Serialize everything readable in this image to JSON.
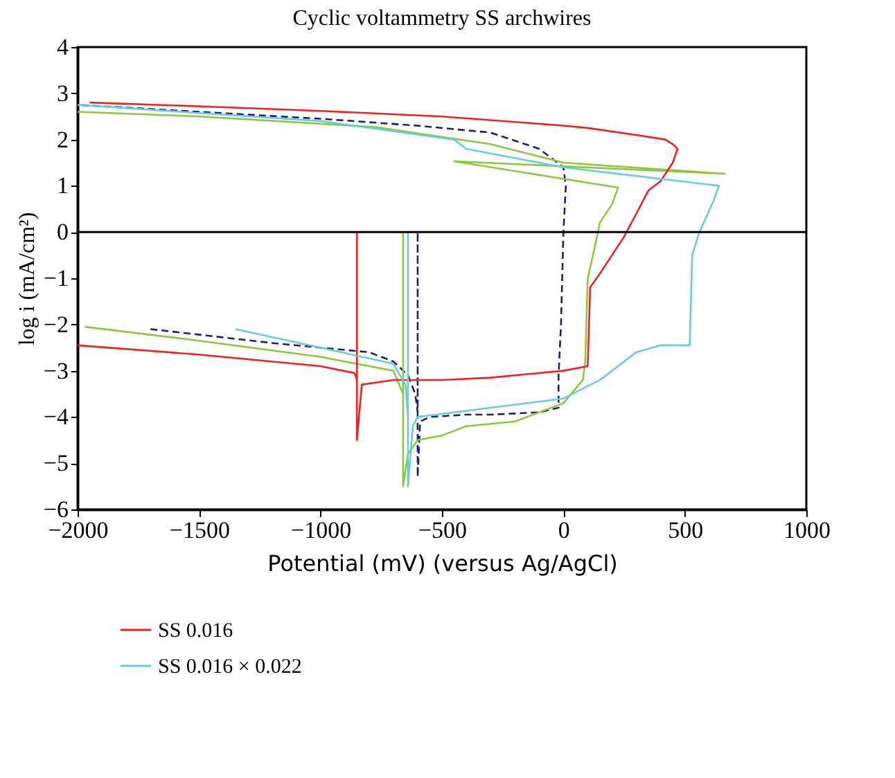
{
  "chart_data": {
    "type": "line",
    "title": "Cyclic voltammetry SS archwires",
    "xlabel": "Potential (mV) (versus Ag/AgCl)",
    "ylabel": "log i (mA/cm²)",
    "xlim": [
      -2000,
      1000
    ],
    "xticks": [
      -2000,
      -1500,
      -1000,
      -500,
      0,
      500,
      1000
    ],
    "ylim": [
      -6,
      4
    ],
    "yticks": [
      -6,
      -5,
      -4,
      -3,
      -2,
      -1,
      0,
      1,
      2,
      3,
      4
    ],
    "grid": false,
    "legend": "bottom",
    "marker": "none",
    "ref_lines": [
      {
        "axis": "y",
        "value": 0,
        "color": "#000000"
      }
    ],
    "series": [
      {
        "color": "#1f1f6e",
        "line_style": "dashed",
        "x": [
          -1700,
          -1200,
          -800,
          -700,
          -640,
          -610,
          -600,
          -600,
          -600,
          -590,
          -550,
          -400,
          -300,
          -100,
          -20,
          -20,
          -10,
          -5,
          0,
          10,
          0,
          -100,
          -300,
          -600,
          -1000,
          -1500,
          -2000
        ],
        "values": [
          -2.1,
          -2.4,
          -2.6,
          -2.8,
          -3.1,
          -3.5,
          -3.9,
          0,
          -5.3,
          -4.1,
          -4.0,
          -3.95,
          -3.95,
          -3.9,
          -3.8,
          -3.1,
          -2.0,
          -1.0,
          0,
          1.0,
          1.4,
          1.8,
          2.15,
          2.3,
          2.45,
          2.6,
          2.75
        ]
      },
      {
        "color": "#8dc63f",
        "line_style": "solid",
        "x": [
          -1970,
          -1500,
          -1000,
          -700,
          -660,
          -660,
          -660,
          -640,
          -600,
          -500,
          -400,
          -200,
          0,
          80,
          90,
          100,
          130,
          150,
          200,
          225,
          -450,
          664,
          0,
          -300,
          -774,
          -1500,
          -2000
        ],
        "values": [
          -2.05,
          -2.35,
          -2.7,
          -3.0,
          -3.5,
          0,
          -5.5,
          -4.8,
          -4.5,
          -4.4,
          -4.2,
          -4.1,
          -3.7,
          -3.2,
          -2.8,
          -1.0,
          -0.3,
          0.2,
          0.6,
          0.96,
          1.53,
          1.26,
          1.5,
          1.9,
          2.27,
          2.5,
          2.6
        ]
      },
      {
        "name": "SS 0.016",
        "color": "#ee2222",
        "line_style": "solid",
        "x": [
          -2000,
          -1500,
          -1000,
          -860,
          -850,
          -850,
          -850,
          -830,
          -700,
          -500,
          -300,
          0,
          100,
          110,
          150,
          200,
          250,
          300,
          350,
          400,
          450,
          470,
          450,
          420,
          300,
          100,
          0,
          -500,
          -1000,
          -1500,
          -1950
        ],
        "values": [
          -2.45,
          -2.65,
          -2.9,
          -3.05,
          -3.2,
          0,
          -4.5,
          -3.3,
          -3.2,
          -3.2,
          -3.15,
          -3.0,
          -2.9,
          -1.2,
          -0.9,
          -0.5,
          -0.1,
          0.4,
          0.9,
          1.1,
          1.5,
          1.8,
          1.9,
          2.0,
          2.1,
          2.25,
          2.3,
          2.5,
          2.62,
          2.72,
          2.8
        ]
      },
      {
        "name": "SS 0.016 × 0.022",
        "color": "#66ccdd",
        "line_style": "solid",
        "x": [
          -1350,
          -1000,
          -700,
          -650,
          -640,
          -640,
          -640,
          -620,
          -600,
          -450,
          -300,
          0,
          150,
          300,
          400,
          520,
          530,
          560,
          620,
          640,
          0,
          -400,
          -450,
          -1000,
          -2000
        ],
        "values": [
          -2.1,
          -2.5,
          -2.85,
          -3.3,
          -4.0,
          0,
          -5.5,
          -4.2,
          -4.0,
          -3.9,
          -3.8,
          -3.6,
          -3.2,
          -2.6,
          -2.45,
          -2.45,
          -0.5,
          0.0,
          0.7,
          1.0,
          1.4,
          1.8,
          2.0,
          2.4,
          2.75
        ]
      }
    ]
  }
}
